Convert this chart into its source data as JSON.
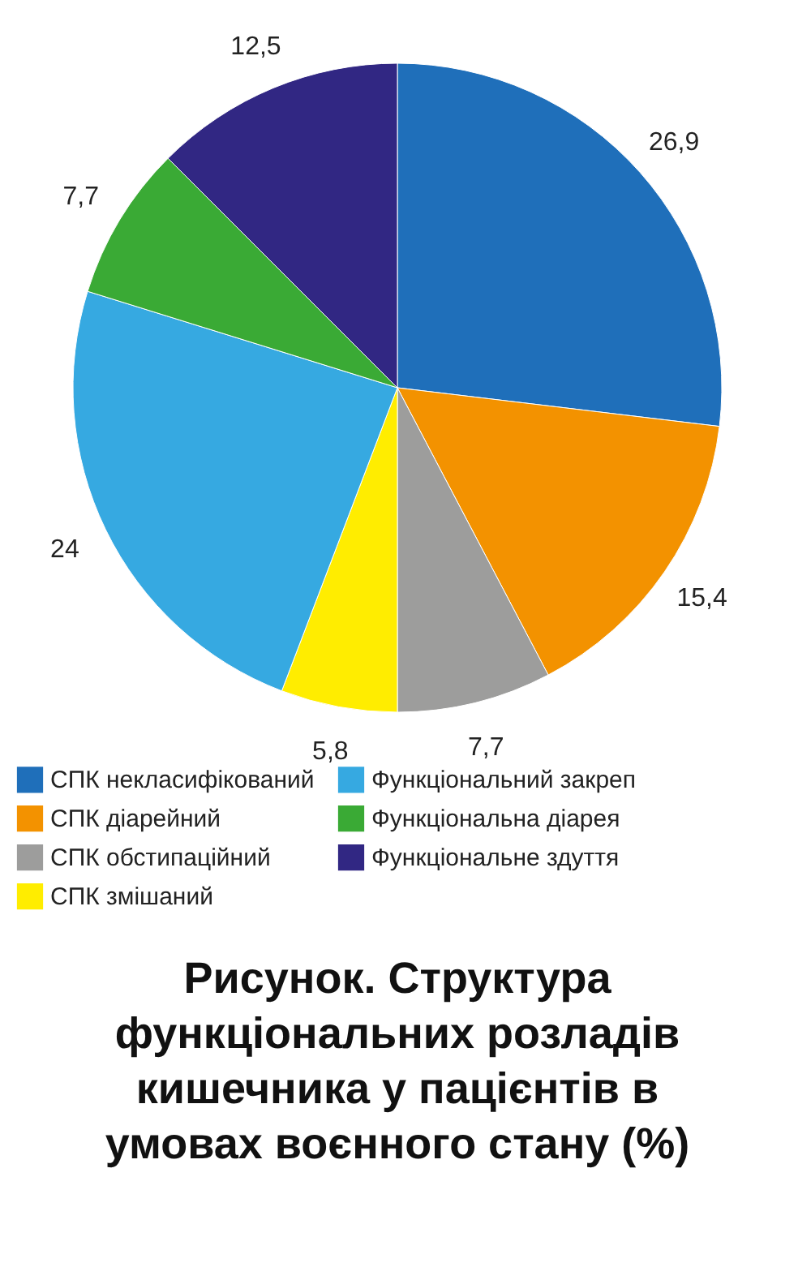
{
  "chart_data": {
    "type": "pie",
    "title": "Рисунок. Структура функціональних розладів кишечника у пацієнтів в умовах воєнного стану (%)",
    "categories": [
      "СПК некласифікований",
      "СПК діарейний",
      "СПК обстипаційний",
      "СПК змішаний",
      "Функціональний закреп",
      "Функціональна діарея",
      "Функціональне здуття"
    ],
    "values": [
      26.9,
      15.4,
      7.7,
      5.8,
      24,
      7.7,
      12.5
    ],
    "value_labels": [
      "26,9",
      "15,4",
      "7,7",
      "5,8",
      "24",
      "7,7",
      "12,5"
    ],
    "colors": [
      "#1f6fba",
      "#f39200",
      "#9d9d9c",
      "#ffed00",
      "#36a9e1",
      "#3aaa35",
      "#312783"
    ],
    "legend": "bottom"
  }
}
